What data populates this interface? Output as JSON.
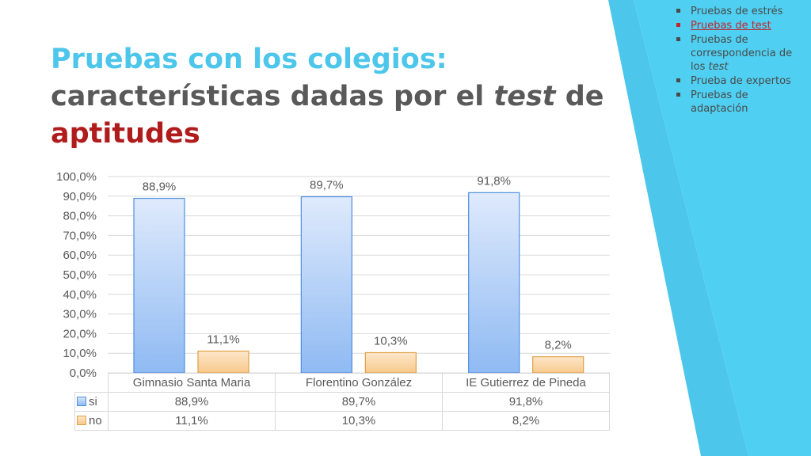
{
  "colors": {
    "accent": "#4cc6ea",
    "deco_dark": "#3bb3d9",
    "title_gray": "#595959",
    "title_red": "#b01c1c",
    "link_red": "#c0262c",
    "si_fill": "#9bc3f4",
    "si_stroke": "#4f8fe0",
    "no_fill": "#f9d5a6",
    "no_stroke": "#e0a045"
  },
  "title": {
    "line1": "Pruebas con los colegios:",
    "line2_pre": "características dadas por el ",
    "line2_em": "test",
    "line2_post": " de",
    "line3": "aptitudes"
  },
  "sidebar": {
    "items": [
      {
        "label": "Pruebas de estrés",
        "active": false
      },
      {
        "label": "Pruebas de test",
        "active": true
      },
      {
        "label_pre": "Pruebas de correspondencia de los ",
        "label_em": "test",
        "active": false
      },
      {
        "label": "Prueba de expertos",
        "active": false
      },
      {
        "label": "Pruebas de adaptación",
        "active": false
      }
    ]
  },
  "chart_data": {
    "type": "bar",
    "categories": [
      "Gimnasio Santa Maria",
      "Florentino González",
      "IE Gutierrez de Pineda"
    ],
    "series": [
      {
        "name": "si",
        "values": [
          88.9,
          89.7,
          91.8
        ],
        "labels": [
          "88,9%",
          "89,7%",
          "91,8%"
        ]
      },
      {
        "name": "no",
        "values": [
          11.1,
          10.3,
          8.2
        ],
        "labels": [
          "11,1%",
          "10,3%",
          "8,2%"
        ]
      }
    ],
    "ylim": [
      0,
      100
    ],
    "yticks": [
      0,
      10,
      20,
      30,
      40,
      50,
      60,
      70,
      80,
      90,
      100
    ],
    "ytick_labels": [
      "0,0%",
      "10,0%",
      "20,0%",
      "30,0%",
      "40,0%",
      "50,0%",
      "60,0%",
      "70,0%",
      "80,0%",
      "90,0%",
      "100,0%"
    ],
    "grid": true,
    "data_table": true
  }
}
